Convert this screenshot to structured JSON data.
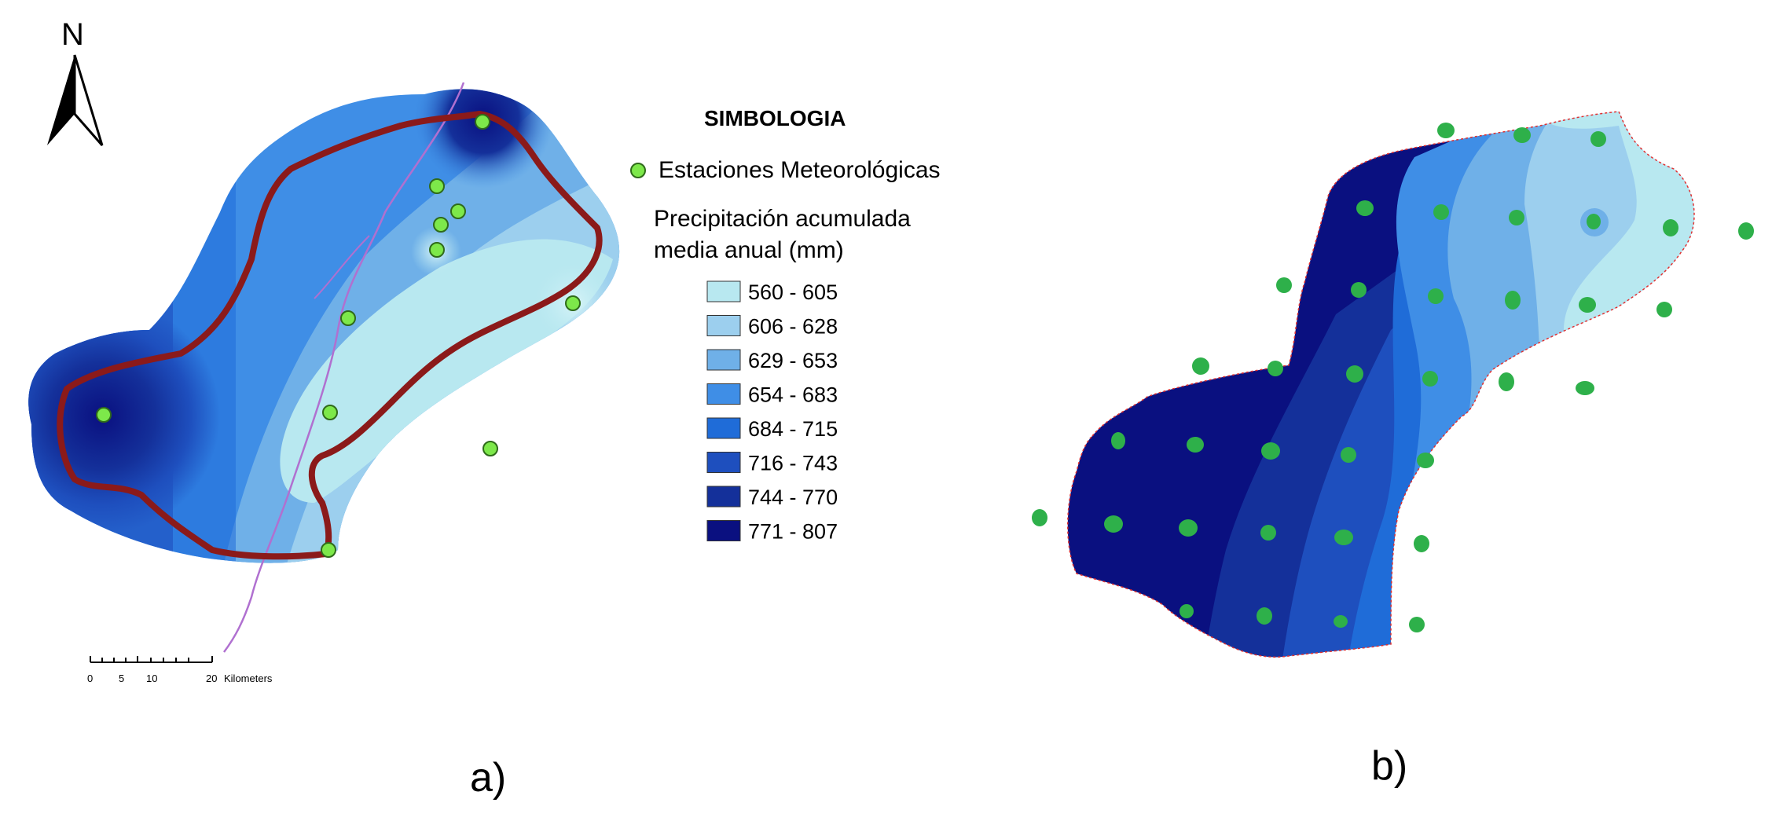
{
  "colors": {
    "basin_outline": "#8b1a1a",
    "river": "#b070d0",
    "station": "#7de84a",
    "station_b": "#2eb04a",
    "boundary_b": "#e03030",
    "class_1": "#b8e8f0",
    "class_2": "#9ccfee",
    "class_3": "#6fb0e8",
    "class_4": "#3f8ee6",
    "class_5": "#1f6cd8",
    "class_6": "#1e4fbe",
    "class_7": "#14309a",
    "class_8": "#0a1080"
  },
  "north_arrow": {
    "label": "N",
    "icon": "north-arrow-icon"
  },
  "legend": {
    "title": "SIMBOLOGIA",
    "stations_label": "Estaciones Meteorológicas",
    "ramp_title_line1": "Precipitación acumulada",
    "ramp_title_line2": "media anual (mm)",
    "classes": [
      {
        "range": "560 - 605",
        "color": "#b8e8f0"
      },
      {
        "range": "606 - 628",
        "color": "#9ccfee"
      },
      {
        "range": "629 - 653",
        "color": "#6fb0e8"
      },
      {
        "range": "654 - 683",
        "color": "#3f8ee6"
      },
      {
        "range": "684 - 715",
        "color": "#1f6cd8"
      },
      {
        "range": "716 - 743",
        "color": "#1e4fbe"
      },
      {
        "range": "744 - 770",
        "color": "#14309a"
      },
      {
        "range": "771 - 807",
        "color": "#0a1080"
      }
    ]
  },
  "scale_bar": {
    "ticks": [
      "0",
      "5",
      "10",
      "20"
    ],
    "units": "Kilometers"
  },
  "panel_labels": {
    "a": "a)",
    "b": "b)"
  }
}
